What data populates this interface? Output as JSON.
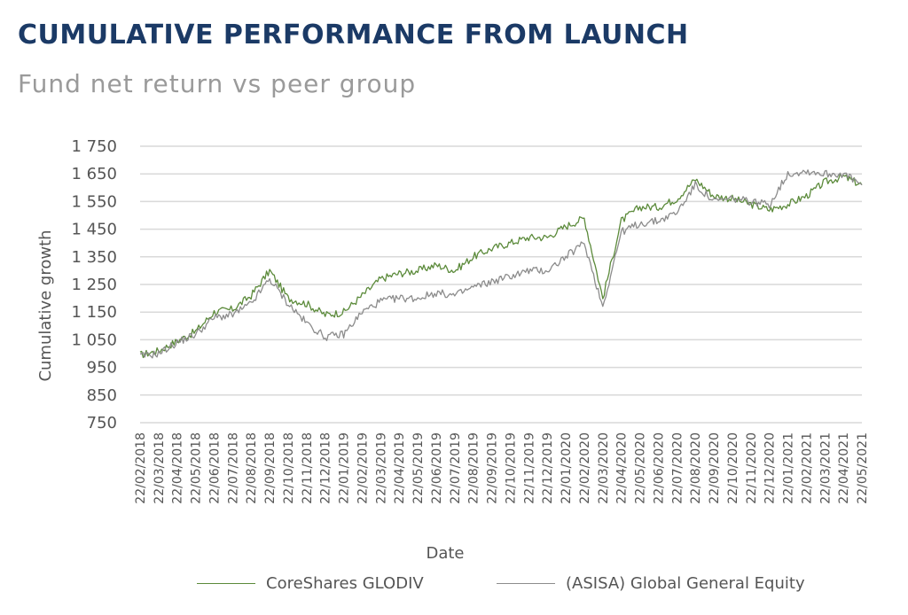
{
  "header": {
    "title": "CUMULATIVE PERFORMANCE FROM LAUNCH",
    "subtitle": "Fund net return vs peer group"
  },
  "chart_data": {
    "type": "line",
    "xlabel": "Date",
    "ylabel": "Cumulative growth",
    "ylim": [
      750,
      1750
    ],
    "yticks": [
      750,
      850,
      950,
      1050,
      1150,
      1250,
      1350,
      1450,
      1550,
      1650,
      1750
    ],
    "ytick_labels": [
      "750",
      "850",
      "950",
      "1 050",
      "1 150",
      "1 250",
      "1 350",
      "1 450",
      "1 550",
      "1 650",
      "1 750"
    ],
    "grid": true,
    "legend_position": "bottom",
    "x_categories": [
      "22/02/2018",
      "22/03/2018",
      "22/04/2018",
      "22/05/2018",
      "22/06/2018",
      "22/07/2018",
      "22/08/2018",
      "22/09/2018",
      "22/10/2018",
      "22/11/2018",
      "22/12/2018",
      "22/01/2019",
      "22/02/2019",
      "22/03/2019",
      "22/04/2019",
      "22/05/2019",
      "22/06/2019",
      "22/07/2019",
      "22/08/2019",
      "22/09/2019",
      "22/10/2019",
      "22/11/2019",
      "22/12/2019",
      "22/01/2020",
      "22/02/2020",
      "22/03/2020",
      "22/04/2020",
      "22/05/2020",
      "22/06/2020",
      "22/07/2020",
      "22/08/2020",
      "22/09/2020",
      "22/10/2020",
      "22/11/2020",
      "22/12/2020",
      "22/01/2021",
      "22/02/2021",
      "22/03/2021",
      "22/04/2021",
      "22/05/2021"
    ],
    "series": [
      {
        "name": "CoreShares GLODIV",
        "color": "#5b8a3a",
        "values": [
          995,
          1010,
          1045,
          1080,
          1150,
          1160,
          1210,
          1300,
          1200,
          1180,
          1140,
          1150,
          1210,
          1270,
          1290,
          1300,
          1320,
          1300,
          1350,
          1380,
          1400,
          1420,
          1420,
          1460,
          1490,
          1200,
          1480,
          1530,
          1530,
          1560,
          1630,
          1570,
          1560,
          1540,
          1520,
          1540,
          1570,
          1620,
          1640,
          1610
        ]
      },
      {
        "name": "(ASISA) Global General Equity",
        "color": "#8c8c8c",
        "values": [
          990,
          1000,
          1040,
          1070,
          1130,
          1140,
          1180,
          1270,
          1180,
          1110,
          1060,
          1070,
          1150,
          1190,
          1200,
          1200,
          1220,
          1210,
          1240,
          1260,
          1280,
          1300,
          1300,
          1350,
          1400,
          1170,
          1440,
          1470,
          1480,
          1510,
          1610,
          1550,
          1560,
          1550,
          1540,
          1650,
          1660,
          1650,
          1650,
          1610
        ]
      }
    ]
  }
}
